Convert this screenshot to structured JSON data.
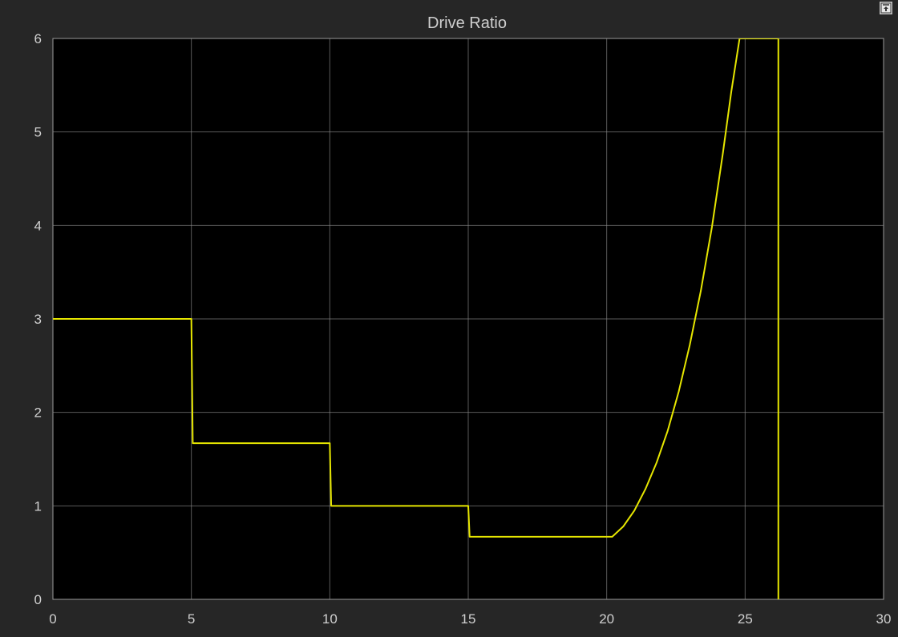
{
  "window": {
    "undock_icon": "undock-icon"
  },
  "chart_data": {
    "type": "line",
    "title": "Drive Ratio",
    "xlabel": "",
    "ylabel": "",
    "xlim": [
      0,
      30
    ],
    "ylim": [
      0,
      6
    ],
    "xticks": [
      0,
      5,
      10,
      15,
      20,
      25,
      30
    ],
    "yticks": [
      0,
      1,
      2,
      3,
      4,
      5,
      6
    ],
    "xtick_labels": [
      "0",
      "5",
      "10",
      "15",
      "20",
      "25",
      "30"
    ],
    "ytick_labels": [
      "0",
      "1",
      "2",
      "3",
      "4",
      "5",
      "6"
    ],
    "grid": true,
    "background": "#000000",
    "series_color": "#e6e600",
    "series": [
      {
        "points": [
          [
            0,
            3.0
          ],
          [
            5.0,
            3.0
          ],
          [
            5.05,
            1.67
          ],
          [
            10.0,
            1.67
          ],
          [
            10.05,
            1.0
          ],
          [
            15.0,
            1.0
          ],
          [
            15.05,
            0.67
          ],
          [
            20.2,
            0.67
          ],
          [
            20.6,
            0.78
          ],
          [
            21.0,
            0.95
          ],
          [
            21.4,
            1.18
          ],
          [
            21.8,
            1.46
          ],
          [
            22.2,
            1.8
          ],
          [
            22.6,
            2.22
          ],
          [
            23.0,
            2.72
          ],
          [
            23.4,
            3.3
          ],
          [
            23.8,
            3.98
          ],
          [
            24.2,
            4.78
          ],
          [
            24.5,
            5.43
          ],
          [
            24.8,
            6.0
          ],
          [
            26.2,
            6.0
          ],
          [
            26.2,
            0
          ]
        ]
      }
    ]
  }
}
